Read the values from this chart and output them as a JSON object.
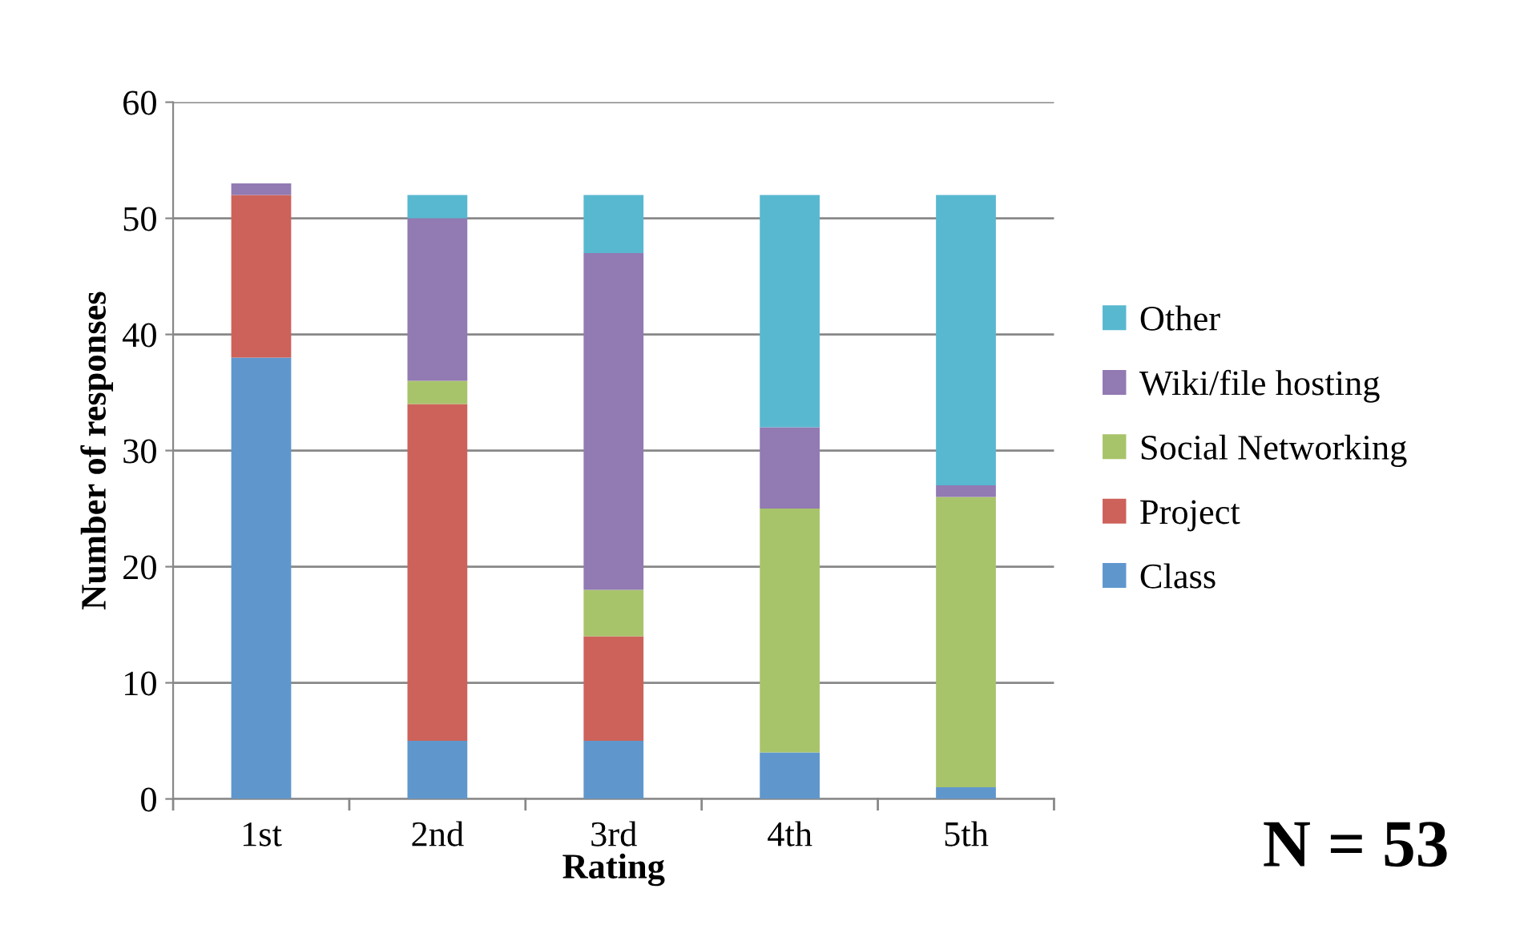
{
  "chart_data": {
    "type": "bar",
    "stacked": true,
    "xlabel": "Rating",
    "ylabel": "Number of responses",
    "categories": [
      "1st",
      "2nd",
      "3rd",
      "4th",
      "5th"
    ],
    "series": [
      {
        "name": "Class",
        "color": "#5f97cd",
        "values": [
          38,
          5,
          5,
          4,
          1
        ]
      },
      {
        "name": "Project",
        "color": "#cd625a",
        "values": [
          14,
          29,
          9,
          0,
          0
        ]
      },
      {
        "name": "Social Networking",
        "color": "#a8c46b",
        "values": [
          0,
          2,
          4,
          21,
          25
        ]
      },
      {
        "name": "Wiki/file hosting",
        "color": "#927ab3",
        "values": [
          1,
          14,
          29,
          7,
          1
        ]
      },
      {
        "name": "Other",
        "color": "#58b8d0",
        "values": [
          0,
          2,
          5,
          20,
          25
        ]
      }
    ],
    "ylim": [
      0,
      60
    ],
    "yticks": [
      0,
      10,
      20,
      30,
      40,
      50,
      60
    ],
    "grid": "y",
    "legend": "right",
    "annotations": [
      "N = 53"
    ]
  }
}
